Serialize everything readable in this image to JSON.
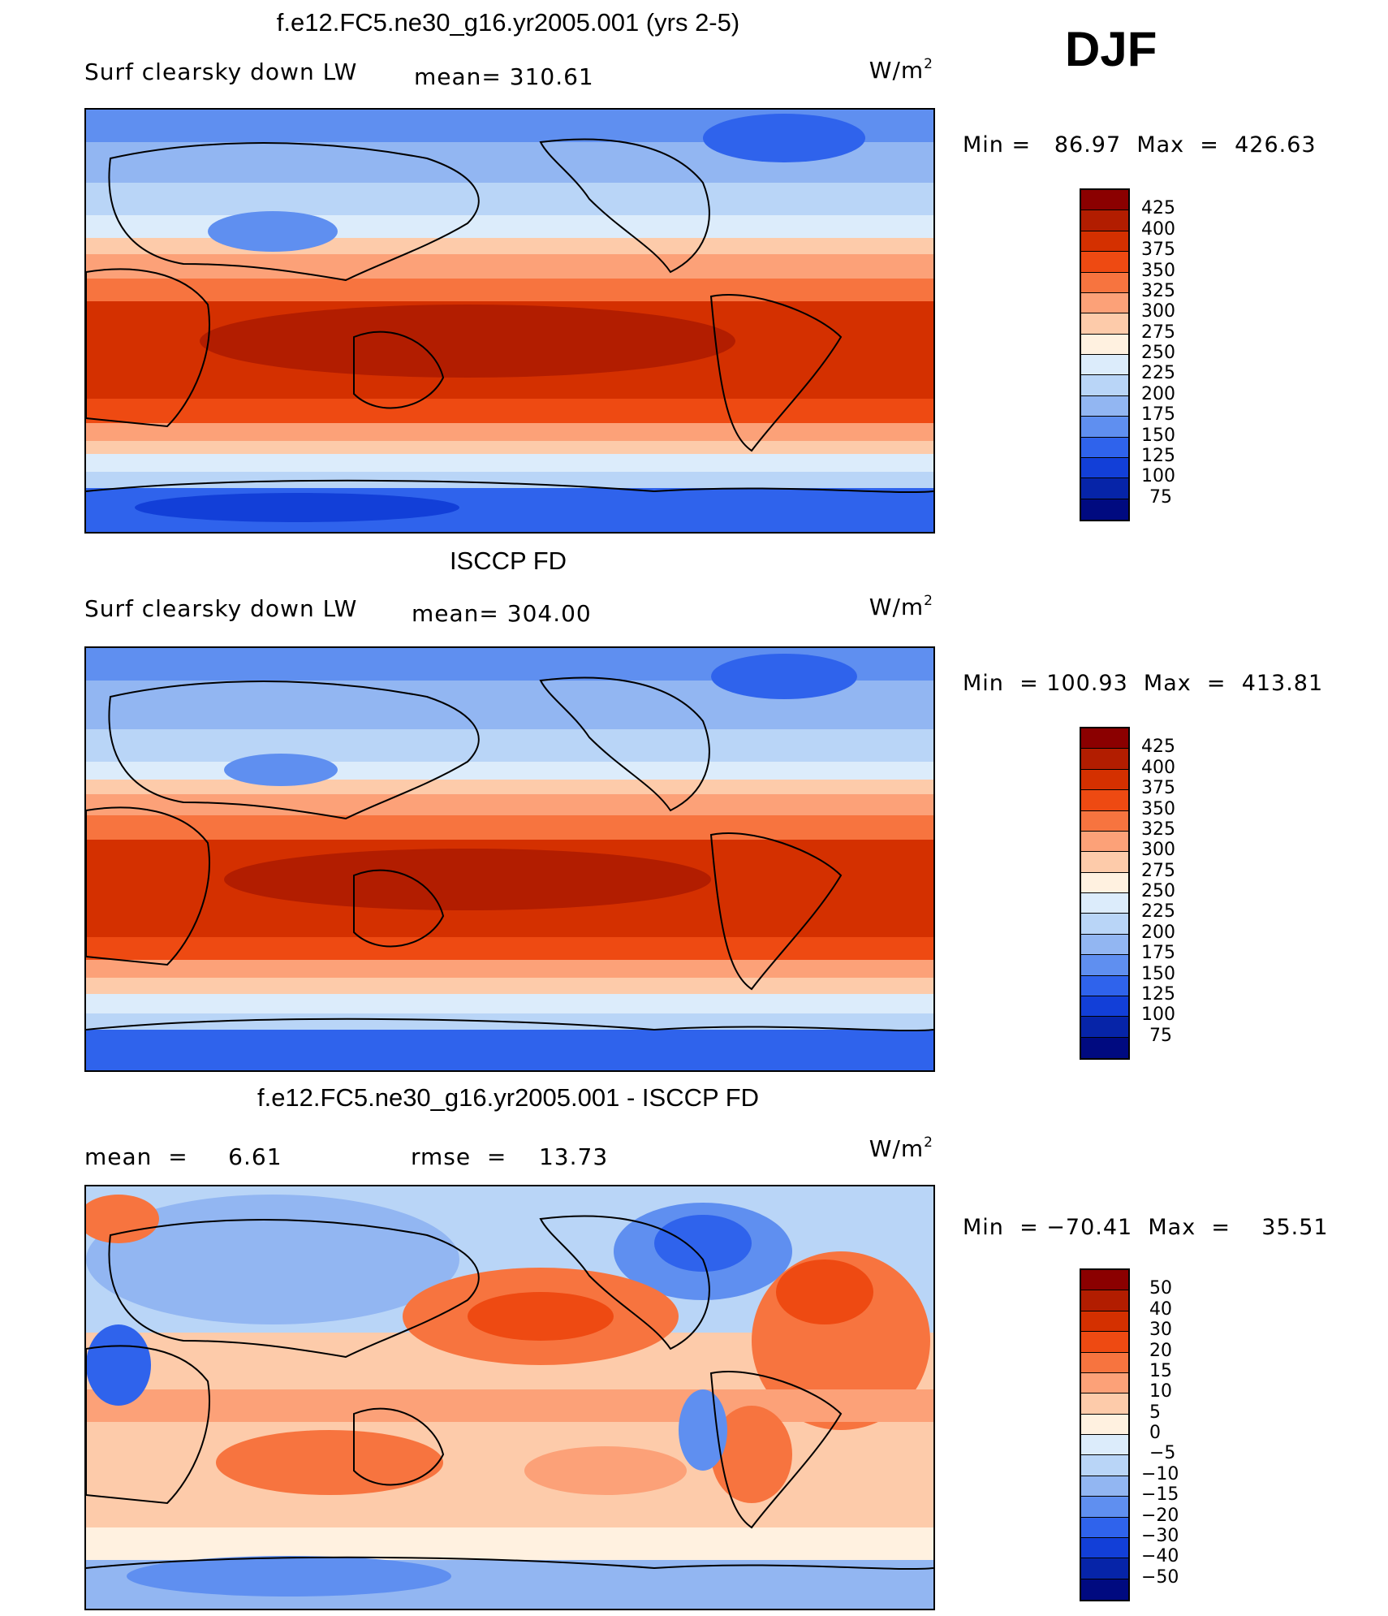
{
  "season": "DJF",
  "panels": [
    {
      "title": "f.e12.FC5.ne30_g16.yr2005.001 (yrs 2-5)",
      "left_label": "Surf clearsky down LW",
      "center_label": "mean= 310.61",
      "units": "W/m",
      "units_sup": "2",
      "minmax": "Min =   86.97  Max  =  426.63"
    },
    {
      "title": "ISCCP FD",
      "left_label": "Surf clearsky down LW",
      "center_label": "mean= 304.00",
      "units": "W/m",
      "units_sup": "2",
      "minmax": "Min  = 100.93  Max  =  413.81"
    },
    {
      "title": "f.e12.FC5.ne30_g16.yr2005.001 - ISCCP FD",
      "left_label": "mean  =     6.61",
      "center_label": "rmse  =    13.73",
      "units": "W/m",
      "units_sup": "2",
      "minmax": "Min  = −70.41  Max  =    35.51"
    }
  ],
  "colorbars": {
    "absolute": {
      "ticks": [
        "425",
        "400",
        "375",
        "350",
        "325",
        "300",
        "275",
        "250",
        "225",
        "200",
        "175",
        "150",
        "125",
        "100",
        "75"
      ],
      "colors": [
        "#8b0000",
        "#b21d00",
        "#d43000",
        "#ee4a12",
        "#f7743f",
        "#fca178",
        "#fdcbaa",
        "#fff1e0",
        "#dcecfb",
        "#b9d5f7",
        "#92b6f2",
        "#5f8ff0",
        "#2f63ec",
        "#123fd8",
        "#0624a8",
        "#000a80"
      ]
    },
    "difference": {
      "ticks": [
        "50",
        "40",
        "30",
        "20",
        "15",
        "10",
        "5",
        "0",
        "−5",
        "−10",
        "−15",
        "−20",
        "−30",
        "−40",
        "−50"
      ],
      "colors": [
        "#8b0000",
        "#b21d00",
        "#d43000",
        "#ee4a12",
        "#f7743f",
        "#fca178",
        "#fdcbaa",
        "#fff1e0",
        "#dcecfb",
        "#b9d5f7",
        "#92b6f2",
        "#5f8ff0",
        "#2f63ec",
        "#123fd8",
        "#0624a8",
        "#000a80"
      ]
    }
  }
}
